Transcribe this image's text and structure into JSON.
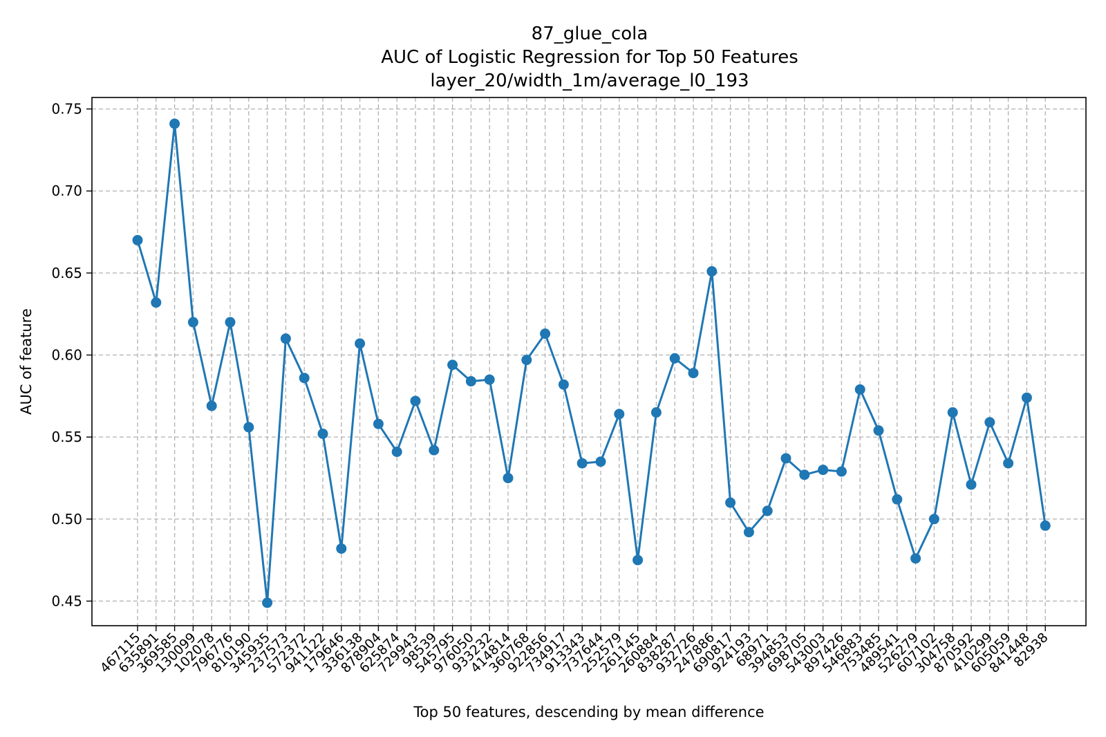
{
  "chart_data": {
    "type": "line",
    "title_lines": [
      "87_glue_cola",
      "AUC of Logistic Regression for Top 50 Features",
      "layer_20/width_1m/average_l0_193"
    ],
    "xlabel": "Top 50 features, descending by mean difference",
    "ylabel": "AUC of feature",
    "ylim": [
      0.435,
      0.757
    ],
    "yticks": [
      0.45,
      0.5,
      0.55,
      0.6,
      0.65,
      0.7,
      0.75
    ],
    "ytick_labels": [
      "0.45",
      "0.50",
      "0.55",
      "0.60",
      "0.65",
      "0.70",
      "0.75"
    ],
    "grid": true,
    "grid_style": "dashed",
    "line_color": "#1f77b4",
    "categories": [
      "467115",
      "635891",
      "369585",
      "130099",
      "102078",
      "796776",
      "810190",
      "345935",
      "237573",
      "572372",
      "941122",
      "179646",
      "336138",
      "878904",
      "625874",
      "729943",
      "98539",
      "545795",
      "976050",
      "933232",
      "414814",
      "360768",
      "922856",
      "734917",
      "913343",
      "737644",
      "252579",
      "261145",
      "260884",
      "838287",
      "932726",
      "247886",
      "690817",
      "924193",
      "68971",
      "394853",
      "698705",
      "543003",
      "897426",
      "546883",
      "753485",
      "489541",
      "526279",
      "607102",
      "304758",
      "870592",
      "410299",
      "605059",
      "841448",
      "82938"
    ],
    "values": [
      0.67,
      0.632,
      0.741,
      0.62,
      0.569,
      0.62,
      0.556,
      0.449,
      0.61,
      0.586,
      0.552,
      0.482,
      0.607,
      0.558,
      0.541,
      0.572,
      0.542,
      0.594,
      0.584,
      0.585,
      0.525,
      0.597,
      0.613,
      0.582,
      0.534,
      0.535,
      0.564,
      0.475,
      0.565,
      0.598,
      0.589,
      0.651,
      0.51,
      0.492,
      0.505,
      0.537,
      0.527,
      0.53,
      0.529,
      0.579,
      0.554,
      0.512,
      0.476,
      0.5,
      0.565,
      0.521,
      0.559,
      0.534,
      0.574,
      0.496
    ]
  }
}
